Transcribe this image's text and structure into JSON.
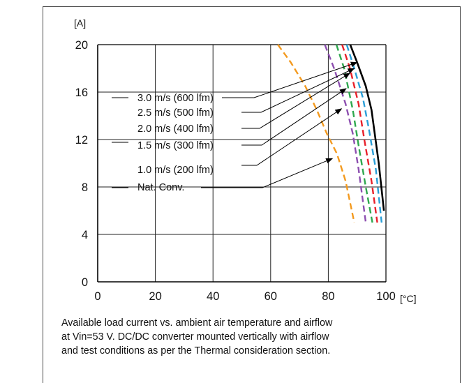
{
  "chart_data": {
    "type": "line",
    "xlabel": "[°C]",
    "ylabel": "[A]",
    "xlim": [
      0,
      100
    ],
    "ylim": [
      0,
      20
    ],
    "x_ticks": [
      "0",
      "20",
      "40",
      "60",
      "80",
      "100"
    ],
    "y_ticks": [
      "0",
      "4",
      "8",
      "12",
      "16",
      "20"
    ],
    "grid": true,
    "series": [
      {
        "name": "3.0 m/s (600 lfm)",
        "color": "#000000",
        "dash": "solid",
        "x": [
          87.6,
          90,
          93,
          95,
          97.5,
          99.3
        ],
        "y": [
          20,
          18.5,
          16.5,
          14.5,
          10,
          6
        ]
      },
      {
        "name": "2.5 m/s (500 lfm)",
        "color": "#2a9fd8",
        "dash": "dashed",
        "x": [
          86.4,
          89,
          92,
          94,
          96.5,
          98.5
        ],
        "y": [
          20,
          18,
          15.5,
          13,
          9.5,
          5
        ]
      },
      {
        "name": "2.0 m/s (400 lfm)",
        "color": "#e8202a",
        "dash": "dashed",
        "x": [
          84.8,
          87.5,
          90.5,
          92.5,
          95,
          97
        ],
        "y": [
          20,
          18,
          15,
          12,
          8.5,
          5
        ]
      },
      {
        "name": "1.5 m/s (300 lfm)",
        "color": "#2fa84f",
        "dash": "dashed",
        "x": [
          82.8,
          85.5,
          88.5,
          90.5,
          93,
          95.3
        ],
        "y": [
          20,
          18,
          14.5,
          11.5,
          8,
          5
        ]
      },
      {
        "name": "1.0 m/s (200 lfm)",
        "color": "#8d4fb0",
        "dash": "dashed",
        "x": [
          78.8,
          82,
          86,
          88.5,
          90.5,
          93
        ],
        "y": [
          20,
          18,
          15,
          12.5,
          9.5,
          5
        ]
      },
      {
        "name": "Nat. Conv.",
        "color": "#f39a1f",
        "dash": "dashed",
        "x": [
          62.5,
          67,
          72,
          76,
          79.5,
          83,
          86,
          89
        ],
        "y": [
          20,
          18.5,
          16.5,
          14.5,
          12.5,
          10.8,
          8.5,
          5
        ]
      }
    ],
    "annotations": [
      {
        "label": "3.0 m/s (600 lfm)",
        "target": [
          90,
          18.5
        ]
      },
      {
        "label": "2.5 m/s (500 lfm)",
        "target": [
          89,
          18
        ]
      },
      {
        "label": "2.0 m/s (400 lfm)",
        "target": [
          87.5,
          17.6
        ]
      },
      {
        "label": "1.5 m/s (300 lfm)",
        "target": [
          86.2,
          16.3
        ]
      },
      {
        "label": "1.0 m/s (200 lfm)",
        "target": [
          84.6,
          14.6
        ]
      },
      {
        "label": "Nat. Conv.",
        "target": [
          81.4,
          10.4
        ]
      }
    ]
  },
  "caption": {
    "line1": "Available load current vs. ambient air temperature and airflow",
    "line2": "at Vin=53 V. DC/DC converter mounted vertically with airflow",
    "line3": "and test conditions as per the Thermal consideration section."
  }
}
